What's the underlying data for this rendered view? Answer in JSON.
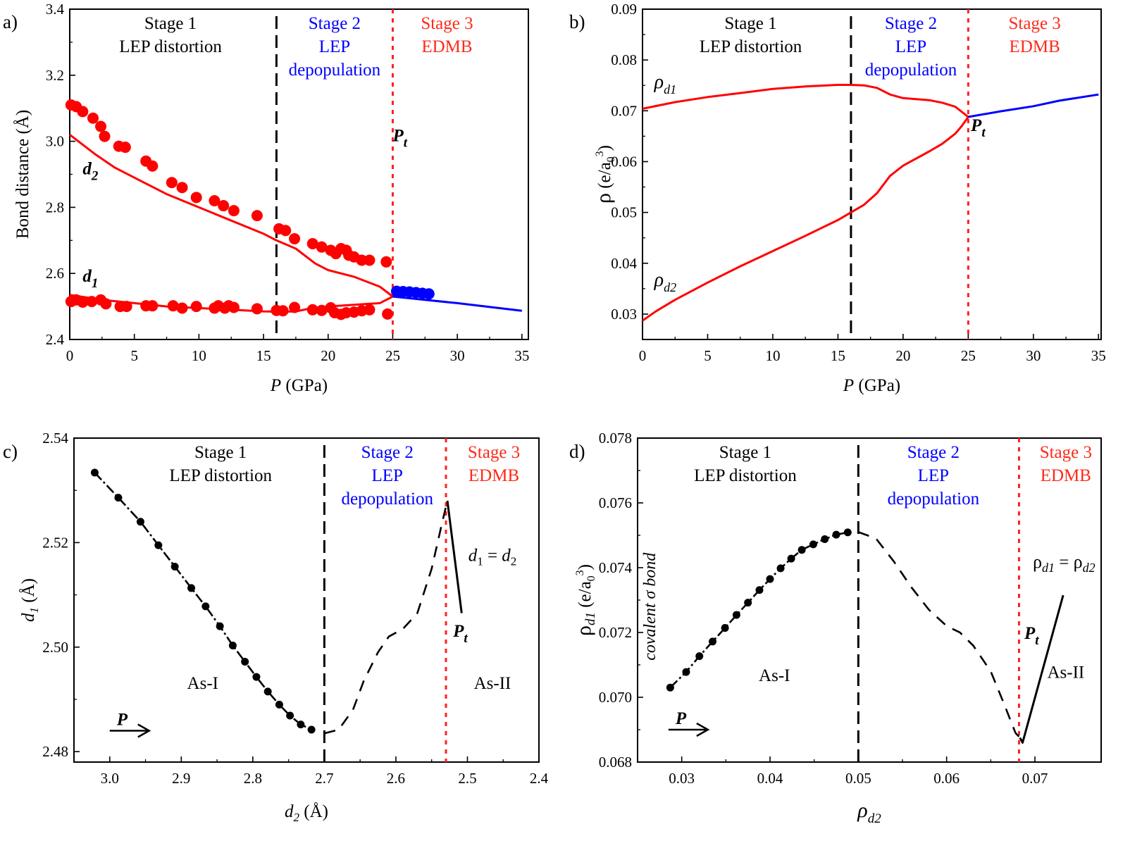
{
  "figure": {
    "colors": {
      "stage1": "#000000",
      "stage2": "#0000ff",
      "stage3": "#ff2a1a",
      "red_series": "#ff0000",
      "blue_series": "#0000ff",
      "black_series": "#000000"
    }
  },
  "chart_data": [
    {
      "id": "a",
      "type": "scatter",
      "panel_label": "a)",
      "xlabel_italic": "P",
      "xlabel_rest": " (GPa)",
      "ylabel": "Bond distance (Å)",
      "xlim": [
        0,
        35.5
      ],
      "ylim": [
        2.4,
        3.4
      ],
      "xticks": [
        0,
        5,
        10,
        15,
        20,
        25,
        30,
        35
      ],
      "xtick_labels": [
        "0",
        "5",
        "10",
        "15",
        "20",
        "25",
        "30",
        "35"
      ],
      "yticks": [
        2.4,
        2.6,
        2.8,
        3.0,
        3.2,
        3.4
      ],
      "ytick_labels": [
        "2.4",
        "2.6",
        "2.8",
        "3.0",
        "3.2",
        "3.4"
      ],
      "stage_boundaries": [
        {
          "x": 16,
          "style": "dashed-black"
        },
        {
          "x": 25,
          "style": "dotted-red"
        }
      ],
      "stages": [
        {
          "lines": [
            "Stage 1",
            "LEP distortion"
          ],
          "color": "stage1",
          "x": 7.8
        },
        {
          "lines": [
            "Stage 2",
            "LEP",
            "depopulation"
          ],
          "color": "stage2",
          "x": 20.5
        },
        {
          "lines": [
            "Stage 3",
            "EDMB"
          ],
          "color": "stage3",
          "x": 29.2
        }
      ],
      "annotations": [
        {
          "text": "d",
          "sub": "2",
          "x": 1.0,
          "y": 2.9
        },
        {
          "text": "d",
          "sub": "1",
          "x": 1.0,
          "y": 2.575
        },
        {
          "text": "P",
          "sub": "t",
          "x": 25.0,
          "y": 3.0
        }
      ],
      "series": [
        {
          "name": "d2 (experiment)",
          "kind": "points",
          "color": "red_series",
          "x": [
            0.1,
            0.5,
            1.0,
            1.8,
            2.4,
            2.7,
            3.8,
            4.3,
            5.9,
            6.4,
            7.9,
            8.7,
            9.8,
            11.2,
            11.9,
            12.7,
            14.5,
            16.2,
            16.7,
            17.4,
            18.8,
            19.5,
            20.2,
            20.6,
            21.0,
            21.4,
            21.6,
            22.0,
            22.6,
            23.2,
            24.5
          ],
          "y": [
            3.11,
            3.105,
            3.09,
            3.07,
            3.045,
            3.015,
            2.985,
            2.982,
            2.94,
            2.925,
            2.875,
            2.86,
            2.83,
            2.82,
            2.805,
            2.79,
            2.775,
            2.735,
            2.73,
            2.705,
            2.69,
            2.68,
            2.67,
            2.66,
            2.675,
            2.67,
            2.655,
            2.65,
            2.64,
            2.64,
            2.635
          ]
        },
        {
          "name": "d1 (experiment)",
          "kind": "points",
          "color": "red_series",
          "x": [
            0.1,
            0.5,
            1.0,
            1.7,
            2.4,
            2.8,
            3.9,
            4.4,
            5.9,
            6.4,
            8.0,
            8.7,
            9.8,
            11.2,
            11.5,
            12.0,
            12.3,
            12.7,
            14.5,
            16.0,
            16.5,
            17.4,
            18.8,
            19.5,
            20.2,
            20.5,
            21.0,
            21.4,
            22.0,
            22.6,
            23.2,
            24.6
          ],
          "y": [
            2.515,
            2.52,
            2.513,
            2.515,
            2.52,
            2.508,
            2.5,
            2.5,
            2.502,
            2.502,
            2.502,
            2.495,
            2.5,
            2.495,
            2.502,
            2.495,
            2.502,
            2.497,
            2.493,
            2.488,
            2.487,
            2.497,
            2.49,
            2.488,
            2.496,
            2.481,
            2.476,
            2.481,
            2.483,
            2.487,
            2.49,
            2.477
          ]
        },
        {
          "name": "d1=d2 (experiment, As-II)",
          "kind": "points",
          "color": "blue_series",
          "x": [
            25.3,
            25.8,
            26.3,
            26.8,
            27.3,
            27.8
          ],
          "y": [
            2.546,
            2.545,
            2.544,
            2.542,
            2.54,
            2.538
          ]
        },
        {
          "name": "d2 (calc)",
          "kind": "line",
          "color": "red_series",
          "x": [
            0,
            1,
            2,
            3.5,
            5,
            7.5,
            10,
            12.5,
            15,
            16,
            17.5,
            19,
            20,
            22,
            24,
            25
          ],
          "y": [
            3.02,
            2.99,
            2.96,
            2.92,
            2.89,
            2.84,
            2.8,
            2.76,
            2.72,
            2.7,
            2.675,
            2.63,
            2.61,
            2.59,
            2.56,
            2.53
          ]
        },
        {
          "name": "d1 (calc)",
          "kind": "line",
          "color": "red_series",
          "x": [
            0,
            2.5,
            5,
            7.5,
            10,
            12.5,
            15,
            16.5,
            17.5,
            18.5,
            20,
            22,
            24,
            25
          ],
          "y": [
            2.535,
            2.52,
            2.51,
            2.5,
            2.495,
            2.49,
            2.485,
            2.484,
            2.485,
            2.493,
            2.5,
            2.505,
            2.51,
            2.53
          ]
        },
        {
          "name": "d (calc, As-II)",
          "kind": "line",
          "color": "blue_series",
          "x": [
            25,
            30,
            35
          ],
          "y": [
            2.53,
            2.51,
            2.487
          ]
        }
      ]
    },
    {
      "id": "b",
      "type": "line",
      "panel_label": "b)",
      "xlabel_italic": "P",
      "xlabel_rest": " (GPa)",
      "ylabel": "ρ (e/a₀³)",
      "xlim": [
        0,
        35.2
      ],
      "ylim": [
        0.025,
        0.09
      ],
      "xticks": [
        0,
        5,
        10,
        15,
        20,
        25,
        30,
        35
      ],
      "xtick_labels": [
        "0",
        "5",
        "10",
        "15",
        "20",
        "25",
        "30",
        "35"
      ],
      "yticks": [
        0.03,
        0.04,
        0.05,
        0.06,
        0.07,
        0.08,
        0.09
      ],
      "ytick_labels": [
        "0.03",
        "0.04",
        "0.05",
        "0.06",
        "0.07",
        "0.08",
        "0.09"
      ],
      "stage_boundaries": [
        {
          "x": 16,
          "style": "dashed-black"
        },
        {
          "x": 25,
          "style": "dotted-red"
        }
      ],
      "stages": [
        {
          "lines": [
            "Stage 1",
            "LEP distortion"
          ],
          "color": "stage1",
          "x": 8.3
        },
        {
          "lines": [
            "Stage 2",
            "LEP",
            "depopulation"
          ],
          "color": "stage2",
          "x": 20.6
        },
        {
          "lines": [
            "Stage 3",
            "EDMB"
          ],
          "color": "stage3",
          "x": 30.1
        }
      ],
      "annotations": [
        {
          "text": "ρ",
          "sub": "d1",
          "x": 0.9,
          "y": 0.0745
        },
        {
          "text": "ρ",
          "sub": "d2",
          "x": 0.9,
          "y": 0.0355
        },
        {
          "text": "P",
          "sub": "t",
          "x": 25.2,
          "y": 0.066
        }
      ],
      "series": [
        {
          "name": "ρd1",
          "kind": "line",
          "color": "red_series",
          "x": [
            0,
            2.5,
            5,
            7.5,
            10,
            12.5,
            15,
            16,
            17,
            18,
            19,
            20,
            22,
            23,
            24,
            25
          ],
          "y": [
            0.0704,
            0.0717,
            0.0727,
            0.0735,
            0.0743,
            0.0748,
            0.0751,
            0.0751,
            0.075,
            0.0745,
            0.0732,
            0.0725,
            0.0721,
            0.0716,
            0.0708,
            0.0688
          ]
        },
        {
          "name": "ρd2",
          "kind": "line",
          "color": "red_series",
          "x": [
            0,
            1,
            2.5,
            5,
            7.5,
            10,
            12.5,
            15,
            16,
            17,
            18,
            19,
            20,
            22,
            23,
            24,
            24.5,
            25
          ],
          "y": [
            0.0287,
            0.0305,
            0.0328,
            0.0362,
            0.0394,
            0.0424,
            0.0454,
            0.0485,
            0.05,
            0.0515,
            0.0538,
            0.0572,
            0.0592,
            0.062,
            0.0635,
            0.0655,
            0.067,
            0.0688
          ]
        },
        {
          "name": "ρd1 = ρd2 (As-II)",
          "kind": "line",
          "color": "blue_series",
          "x": [
            25,
            27.5,
            30,
            32,
            35
          ],
          "y": [
            0.0688,
            0.0699,
            0.0709,
            0.072,
            0.0732
          ]
        }
      ]
    },
    {
      "id": "c",
      "type": "line",
      "panel_label": "c)",
      "xlabel": "d₂ (Å)",
      "ylabel": "d₁ (Å)",
      "x_reversed": true,
      "xlim": [
        3.05,
        2.4
      ],
      "ylim": [
        2.478,
        2.54
      ],
      "xticks": [
        3.0,
        2.9,
        2.8,
        2.7,
        2.6,
        2.5,
        2.4
      ],
      "xtick_labels": [
        "3.0",
        "2.9",
        "2.8",
        "2.7",
        "2.6",
        "2.5",
        "2.4"
      ],
      "yticks": [
        2.48,
        2.5,
        2.52,
        2.54
      ],
      "ytick_labels": [
        "2.48",
        "2.50",
        "2.52",
        "2.54"
      ],
      "stage_boundaries": [
        {
          "x": 2.7,
          "style": "dashed-black"
        },
        {
          "x": 2.53,
          "style": "dotted-red"
        }
      ],
      "stages": [
        {
          "lines": [
            "Stage 1",
            "LEP distortion"
          ],
          "color": "stage1",
          "x": 2.845
        },
        {
          "lines": [
            "Stage 2",
            "LEP",
            "depopulation"
          ],
          "color": "stage2",
          "x": 2.612
        },
        {
          "lines": [
            "Stage 3",
            "EDMB"
          ],
          "color": "stage3",
          "x": 2.463
        }
      ],
      "annotations": [
        {
          "text": "As-I",
          "x": 2.87,
          "y": 2.492
        },
        {
          "text": "As-II",
          "x": 2.465,
          "y": 2.492
        },
        {
          "text": "d₁ = d₂",
          "x": 2.465,
          "y": 2.5165
        },
        {
          "text": "P",
          "sub": "t",
          "x": 2.52,
          "y": 2.502
        },
        {
          "text": "P",
          "arrow": true,
          "x": 3.0,
          "y": 2.484
        }
      ],
      "series": [
        {
          "name": "Stage 1 (As-I)",
          "kind": "points+dashdot",
          "color": "black_series",
          "x": [
            3.021,
            2.988,
            2.957,
            2.932,
            2.909,
            2.886,
            2.866,
            2.846,
            2.828,
            2.811,
            2.795,
            2.779,
            2.763,
            2.748,
            2.733,
            2.718
          ],
          "y": [
            2.5334,
            2.5286,
            2.524,
            2.5195,
            2.5154,
            2.5113,
            2.5078,
            2.504,
            2.5003,
            2.4972,
            2.4943,
            2.4915,
            2.489,
            2.4869,
            2.4852,
            2.4842
          ]
        },
        {
          "name": "Stage 2",
          "kind": "dashed",
          "color": "black_series",
          "x": [
            2.7,
            2.68,
            2.66,
            2.645,
            2.625,
            2.61,
            2.59,
            2.57,
            2.55,
            2.535,
            2.528
          ],
          "y": [
            2.4835,
            2.4842,
            2.488,
            2.4935,
            2.499,
            2.502,
            2.5035,
            2.5065,
            2.515,
            2.524,
            2.528
          ]
        },
        {
          "name": "Stage 3 (As-II)",
          "kind": "solid",
          "color": "black_series",
          "x": [
            2.528,
            2.508
          ],
          "y": [
            2.528,
            2.5065
          ]
        }
      ]
    },
    {
      "id": "d",
      "type": "line",
      "panel_label": "d)",
      "xlabel": "ρd2",
      "ylabel": "ρd1 (e/a₀³)",
      "xlim": [
        0.025,
        0.0775
      ],
      "ylim": [
        0.068,
        0.078
      ],
      "xticks": [
        0.03,
        0.04,
        0.05,
        0.06,
        0.07
      ],
      "xtick_labels": [
        "0.03",
        "0.04",
        "0.05",
        "0.06",
        "0.07"
      ],
      "yticks": [
        0.068,
        0.07,
        0.072,
        0.074,
        0.076,
        0.078
      ],
      "ytick_labels": [
        "0.068",
        "0.070",
        "0.072",
        "0.074",
        "0.076",
        "0.078"
      ],
      "stage_boundaries": [
        {
          "x": 0.05,
          "style": "dashed-black"
        },
        {
          "x": 0.0682,
          "style": "dotted-red"
        }
      ],
      "stages": [
        {
          "lines": [
            "Stage 1",
            "LEP distortion"
          ],
          "color": "stage1",
          "x": 0.0372
        },
        {
          "lines": [
            "Stage 2",
            "LEP",
            "depopulation"
          ],
          "color": "stage2",
          "x": 0.0585
        },
        {
          "lines": [
            "Stage 3",
            "EDMB"
          ],
          "color": "stage3",
          "x": 0.0735
        }
      ],
      "annotations": [
        {
          "text": "covalent σ bond",
          "rotated": true,
          "x": 0.027,
          "y": 0.0728
        },
        {
          "text": "As-I",
          "x": 0.0405,
          "y": 0.0705
        },
        {
          "text": "As-II",
          "x": 0.0735,
          "y": 0.0706
        },
        {
          "text": "ρd1 = ρd2",
          "x": 0.0733,
          "y": 0.074
        },
        {
          "text": "P",
          "sub": "t",
          "x": 0.0688,
          "y": 0.0718
        },
        {
          "text": "P",
          "arrow": true,
          "x": 0.0285,
          "y": 0.069
        }
      ],
      "series": [
        {
          "name": "Stage 1 (As-I)",
          "kind": "points+dashdot",
          "color": "black_series",
          "x": [
            0.0287,
            0.0305,
            0.032,
            0.0335,
            0.0349,
            0.0362,
            0.0375,
            0.0388,
            0.04,
            0.0412,
            0.0424,
            0.0436,
            0.0449,
            0.0462,
            0.0475,
            0.0488
          ],
          "y": [
            0.0703,
            0.07078,
            0.07127,
            0.07172,
            0.07214,
            0.07254,
            0.07292,
            0.07331,
            0.07365,
            0.07398,
            0.07428,
            0.07455,
            0.07472,
            0.07488,
            0.07502,
            0.07509
          ]
        },
        {
          "name": "Stage 2",
          "kind": "dashed",
          "color": "black_series",
          "x": [
            0.05,
            0.052,
            0.054,
            0.056,
            0.058,
            0.06,
            0.0615,
            0.063,
            0.065,
            0.0665,
            0.0678,
            0.0683
          ],
          "y": [
            0.0751,
            0.0749,
            0.0742,
            0.0734,
            0.0727,
            0.0722,
            0.072,
            0.0716,
            0.0708,
            0.0698,
            0.0689,
            0.06875
          ]
        },
        {
          "name": "Stage 3 (As-II)",
          "kind": "solid",
          "color": "black_series",
          "x": [
            0.0683,
            0.0686,
            0.0732
          ],
          "y": [
            0.06875,
            0.0686,
            0.07315
          ]
        }
      ]
    }
  ]
}
